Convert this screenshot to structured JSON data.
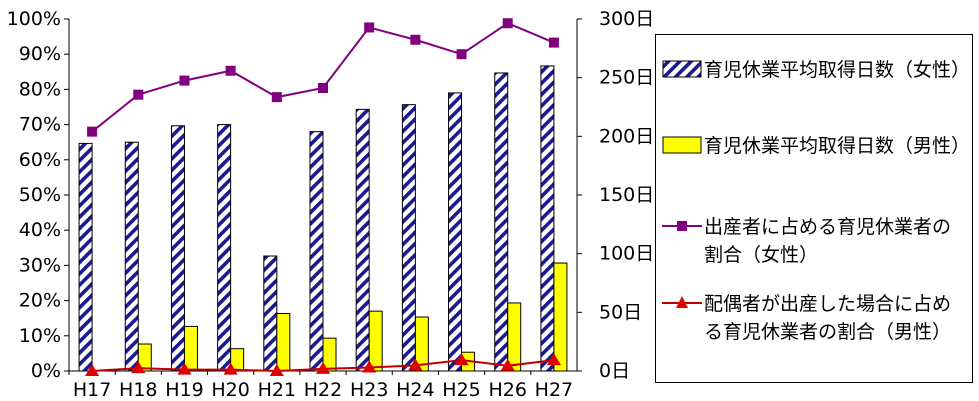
{
  "chart_data": {
    "type": "bar",
    "categories": [
      "H17",
      "H18",
      "H19",
      "H20",
      "H21",
      "H22",
      "H23",
      "H24",
      "H25",
      "H26",
      "H27"
    ],
    "series": [
      {
        "name": "育児休業平均取得日数（女性）",
        "kind": "bar",
        "axis": "right",
        "pattern": "diagonal-hatch",
        "color": "#1a1a8c",
        "values": [
          194,
          195,
          209,
          210,
          98,
          204,
          223,
          227,
          237,
          254,
          260
        ]
      },
      {
        "name": "育児休業平均取得日数（男性）",
        "kind": "bar",
        "axis": "right",
        "color": "#ffff00",
        "values": [
          0,
          23,
          38,
          19,
          49,
          28,
          51,
          46,
          16,
          58,
          92
        ]
      },
      {
        "name": "出産者に占める育児休業者の割合（女性）",
        "kind": "line",
        "axis": "left",
        "marker": "square",
        "color": "#800080",
        "values": [
          68.0,
          78.5,
          82.5,
          85.3,
          77.8,
          80.4,
          97.6,
          94.1,
          90.0,
          98.8,
          93.3
        ]
      },
      {
        "name": "配偶者が出産した場合に占める育児休業者の割合（男性）",
        "kind": "line",
        "axis": "left",
        "marker": "triangle",
        "color": "#c00000",
        "values": [
          0.0,
          0.8,
          0.4,
          0.4,
          0.0,
          0.6,
          1.0,
          1.6,
          3.1,
          1.5,
          3.1
        ]
      }
    ],
    "left_axis": {
      "ticks": [
        "0%",
        "10%",
        "20%",
        "30%",
        "40%",
        "50%",
        "60%",
        "70%",
        "80%",
        "90%",
        "100%"
      ],
      "ylim": [
        0,
        100
      ]
    },
    "right_axis": {
      "ticks": [
        "0日",
        "50日",
        "100日",
        "150日",
        "200日",
        "250日",
        "300日"
      ],
      "ylim": [
        0,
        300
      ]
    },
    "legend": {
      "placement": "right",
      "items": [
        {
          "lines": [
            "育児休業平均取得日数（女性）"
          ],
          "symbol": "hatch"
        },
        {
          "lines": [
            "育児休業平均取得日数（男性）"
          ],
          "symbol": "yellow"
        },
        {
          "lines": [
            "出産者に占める育児休業者の",
            "割合（女性）"
          ],
          "symbol": "square-line"
        },
        {
          "lines": [
            "配偶者が出産した場合に占め",
            "る育児休業者の割合（男性）"
          ],
          "symbol": "triangle-line"
        }
      ]
    },
    "grid": false
  }
}
